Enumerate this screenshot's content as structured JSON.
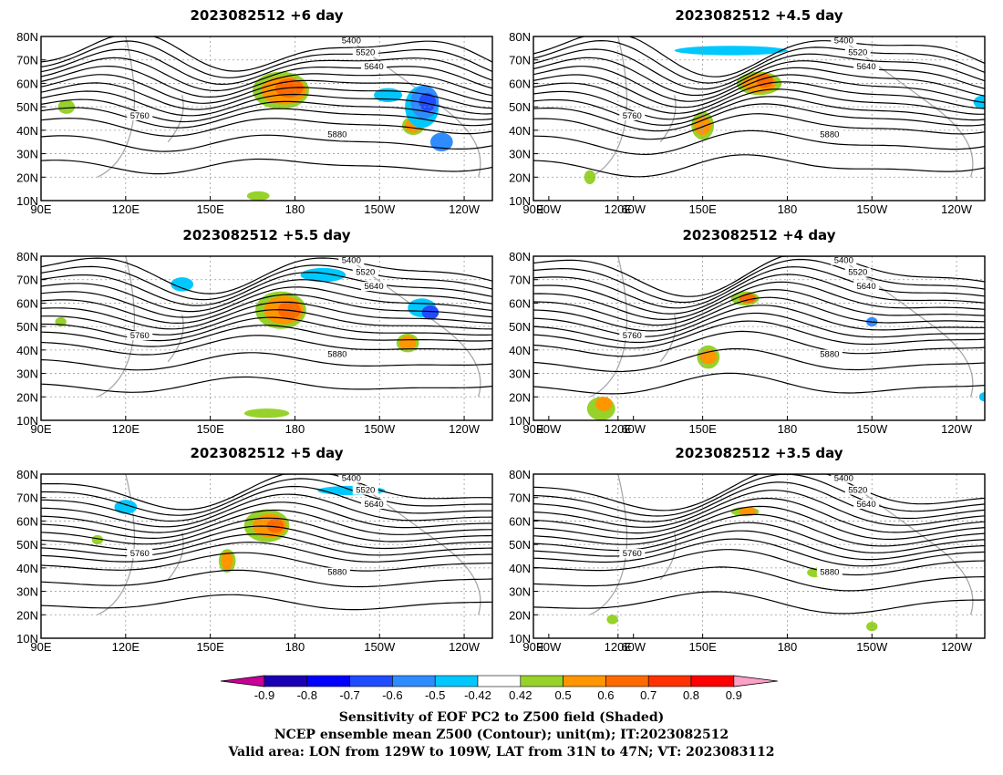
{
  "panels": [
    {
      "id": "p1",
      "title": "2023082512  +6  day"
    },
    {
      "id": "p2",
      "title": "2023082512  +4.5  day"
    },
    {
      "id": "p3",
      "title": "2023082512  +5.5  day"
    },
    {
      "id": "p4",
      "title": "2023082512  +4  day"
    },
    {
      "id": "p5",
      "title": "2023082512  +5  day"
    },
    {
      "id": "p6",
      "title": "2023082512  +3.5  day"
    }
  ],
  "lat_ticks": [
    "80N",
    "70N",
    "60N",
    "50N",
    "40N",
    "30N",
    "20N",
    "10N"
  ],
  "lon_ticks": [
    "90E",
    "120E",
    "150E",
    "180",
    "150W",
    "120W",
    "90W",
    "60W"
  ],
  "contour_labels": [
    "5400",
    "5520",
    "5640",
    "5760",
    "5880"
  ],
  "colorbar": {
    "tick_labels": [
      "-0.9",
      "-0.8",
      "-0.7",
      "-0.6",
      "-0.5",
      "-0.42",
      "0.42",
      "0.5",
      "0.6",
      "0.7",
      "0.8",
      "0.9"
    ],
    "colors": [
      "#1a00b4",
      "#0000ff",
      "#1f4cff",
      "#2f8cff",
      "#00c8ff",
      "#ffffff",
      "#96d22a",
      "#ff9600",
      "#ff6a00",
      "#ff3200",
      "#ff0000"
    ],
    "low_arrow_color": "#c80096",
    "high_arrow_color": "#ffa0c8"
  },
  "caption": {
    "line1": "Sensitivity of EOF PC2 to Z500 field (Shaded)",
    "line2": "NCEP ensemble mean Z500 (Contour); unit(m); IT:2023082512",
    "line3": "Valid area: LON from 129W to 109W, LAT from 31N to 47N; VT: 2023083112"
  }
}
